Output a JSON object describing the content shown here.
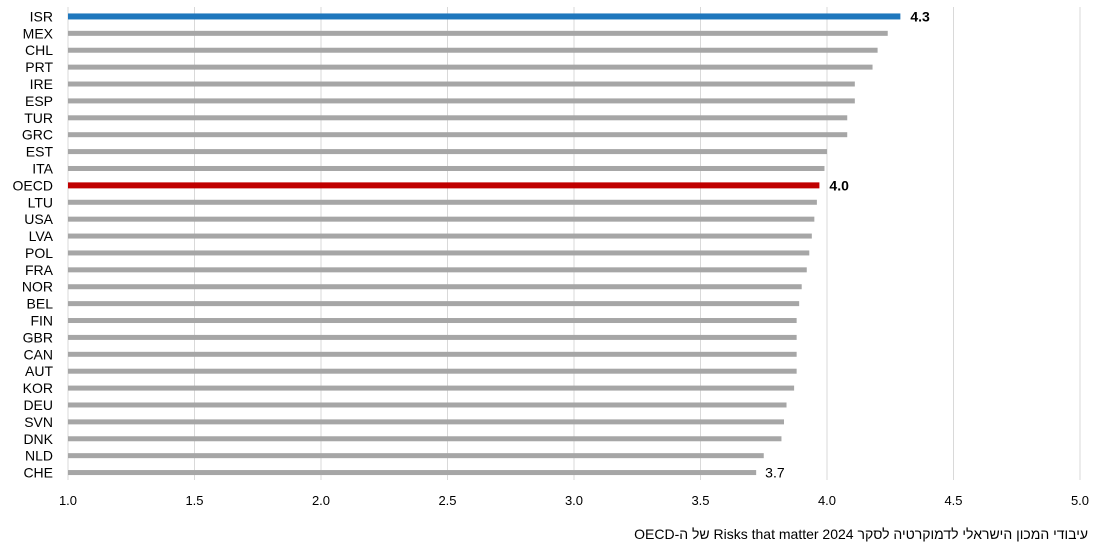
{
  "chart_data": {
    "type": "bar",
    "orientation": "horizontal",
    "categories": [
      "ISR",
      "MEX",
      "CHL",
      "PRT",
      "IRE",
      "ESP",
      "TUR",
      "GRC",
      "EST",
      "ITA",
      "OECD",
      "LTU",
      "USA",
      "LVA",
      "POL",
      "FRA",
      "NOR",
      "BEL",
      "FIN",
      "GBR",
      "CAN",
      "AUT",
      "KOR",
      "DEU",
      "SVN",
      "DNK",
      "NLD",
      "CHE"
    ],
    "values": [
      4.29,
      4.24,
      4.2,
      4.18,
      4.11,
      4.11,
      4.08,
      4.08,
      4.0,
      3.99,
      3.97,
      3.96,
      3.95,
      3.94,
      3.93,
      3.92,
      3.9,
      3.89,
      3.88,
      3.88,
      3.88,
      3.88,
      3.87,
      3.84,
      3.83,
      3.82,
      3.75,
      3.72
    ],
    "highlights": {
      "ISR": {
        "color": "#1f77bd",
        "label": "4.3"
      },
      "OECD": {
        "color": "#c00000",
        "label": "4.0"
      },
      "CHE": {
        "label": "3.7"
      }
    },
    "bar_color": "#a6a6a6",
    "xlim": [
      1.0,
      5.0
    ],
    "xticks": [
      "1.0",
      "1.5",
      "2.0",
      "2.5",
      "3.0",
      "3.5",
      "4.0",
      "4.5",
      "5.0"
    ],
    "grid": "vertical",
    "title": "",
    "xlabel": "",
    "ylabel": ""
  },
  "source_note": "עיבודי המכון הישראלי לדמוקרטיה לסקר Risks that matter 2024 של ה-OECD"
}
